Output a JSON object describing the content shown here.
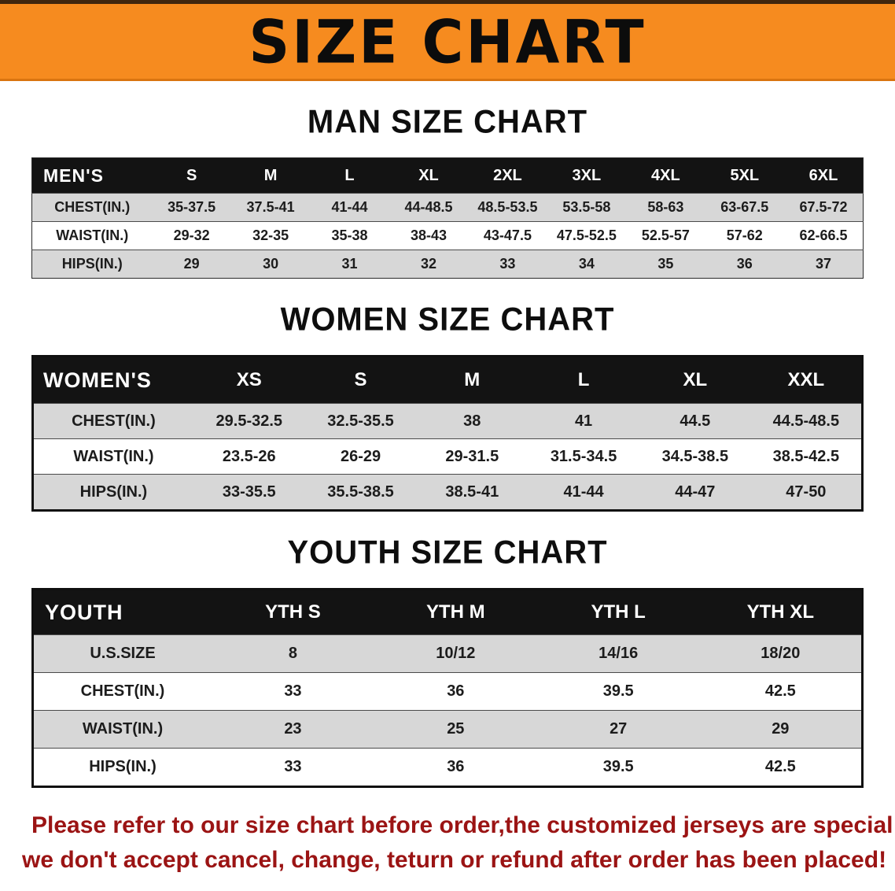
{
  "banner": {
    "title": "SIZE CHART"
  },
  "sections": {
    "men": {
      "heading": "MAN SIZE CHART"
    },
    "women": {
      "heading": "WOMEN SIZE CHART"
    },
    "youth": {
      "heading": "YOUTH SIZE CHART"
    }
  },
  "tables": {
    "men": {
      "label": "MEN'S",
      "sizes": [
        "S",
        "M",
        "L",
        "XL",
        "2XL",
        "3XL",
        "4XL",
        "5XL",
        "6XL"
      ],
      "rows": [
        {
          "label": "CHEST(IN.)",
          "values": [
            "35-37.5",
            "37.5-41",
            "41-44",
            "44-48.5",
            "48.5-53.5",
            "53.5-58",
            "58-63",
            "63-67.5",
            "67.5-72"
          ]
        },
        {
          "label": "WAIST(IN.)",
          "values": [
            "29-32",
            "32-35",
            "35-38",
            "38-43",
            "43-47.5",
            "47.5-52.5",
            "52.5-57",
            "57-62",
            "62-66.5"
          ]
        },
        {
          "label": "HIPS(IN.)",
          "values": [
            "29",
            "30",
            "31",
            "32",
            "33",
            "34",
            "35",
            "36",
            "37"
          ]
        }
      ]
    },
    "women": {
      "label": "WOMEN'S",
      "sizes": [
        "XS",
        "S",
        "M",
        "L",
        "XL",
        "XXL"
      ],
      "rows": [
        {
          "label": "CHEST(IN.)",
          "values": [
            "29.5-32.5",
            "32.5-35.5",
            "38",
            "41",
            "44.5",
            "44.5-48.5"
          ]
        },
        {
          "label": "WAIST(IN.)",
          "values": [
            "23.5-26",
            "26-29",
            "29-31.5",
            "31.5-34.5",
            "34.5-38.5",
            "38.5-42.5"
          ]
        },
        {
          "label": "HIPS(IN.)",
          "values": [
            "33-35.5",
            "35.5-38.5",
            "38.5-41",
            "41-44",
            "44-47",
            "47-50"
          ]
        }
      ]
    },
    "youth": {
      "label": "YOUTH",
      "sizes": [
        "YTH S",
        "YTH M",
        "YTH L",
        "YTH XL"
      ],
      "rows": [
        {
          "label": "U.S.SIZE",
          "values": [
            "8",
            "10/12",
            "14/16",
            "18/20"
          ]
        },
        {
          "label": "CHEST(IN.)",
          "values": [
            "33",
            "36",
            "39.5",
            "42.5"
          ]
        },
        {
          "label": "WAIST(IN.)",
          "values": [
            "23",
            "25",
            "27",
            "29"
          ]
        },
        {
          "label": "HIPS(IN.)",
          "values": [
            "33",
            "36",
            "39.5",
            "42.5"
          ]
        }
      ]
    }
  },
  "footer": {
    "line1": "Please refer to our size chart before order,the customized jerseys are special products,",
    "line2": "we don't accept cancel, change, teturn or refund after order has been placed!"
  },
  "colors": {
    "banner_bg": "#f68b1f",
    "table_header_bg": "#131313",
    "row_stripe": "#d7d7d7",
    "footer_text": "#9b1414"
  }
}
